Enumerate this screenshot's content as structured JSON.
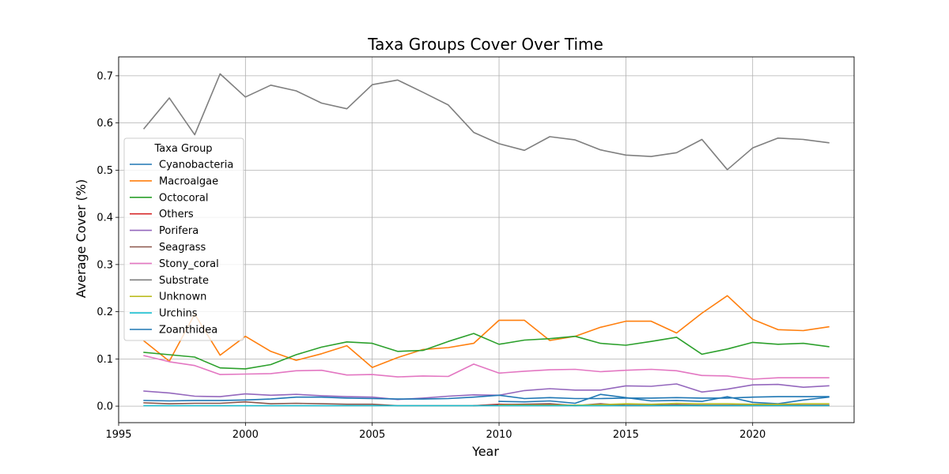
{
  "chart_data": {
    "type": "line",
    "title": "Taxa Groups Cover Over Time",
    "xlabel": "Year",
    "ylabel": "Average Cover (%)",
    "xlim": [
      1995,
      2024
    ],
    "ylim": [
      -0.035,
      0.74
    ],
    "xticks": [
      1995,
      2000,
      2005,
      2010,
      2015,
      2020
    ],
    "yticks": [
      0.0,
      0.1,
      0.2,
      0.3,
      0.4,
      0.5,
      0.6,
      0.7
    ],
    "ytick_labels": [
      "0.0",
      "0.1",
      "0.2",
      "0.3",
      "0.4",
      "0.5",
      "0.6",
      "0.7"
    ],
    "grid": true,
    "legend": {
      "title": "Taxa Group",
      "placement": "center-left"
    },
    "series": [
      {
        "name": "Cyanobacteria",
        "color": "#1f77b4",
        "x": [
          2010,
          2011,
          2012,
          2013,
          2014,
          2015,
          2016,
          2017,
          2018,
          2019,
          2020,
          2021,
          2022,
          2023
        ],
        "values": [
          0.01,
          0.009,
          0.011,
          0.006,
          0.025,
          0.018,
          0.011,
          0.012,
          0.01,
          0.02,
          0.008,
          0.005,
          0.013,
          0.019
        ]
      },
      {
        "name": "Macroalgae",
        "color": "#ff7f0e",
        "x": [
          1996,
          1997,
          1998,
          1999,
          2000,
          2001,
          2002,
          2003,
          2004,
          2005,
          2006,
          2007,
          2008,
          2009,
          2010,
          2011,
          2012,
          2013,
          2014,
          2015,
          2016,
          2017,
          2018,
          2019,
          2020,
          2021,
          2022,
          2023
        ],
        "values": [
          0.138,
          0.095,
          0.195,
          0.108,
          0.148,
          0.116,
          0.097,
          0.111,
          0.128,
          0.082,
          0.103,
          0.12,
          0.124,
          0.133,
          0.182,
          0.182,
          0.139,
          0.148,
          0.167,
          0.18,
          0.18,
          0.155,
          0.197,
          0.234,
          0.184,
          0.162,
          0.16,
          0.168
        ]
      },
      {
        "name": "Octocoral",
        "color": "#2ca02c",
        "x": [
          1996,
          1997,
          1998,
          1999,
          2000,
          2001,
          2002,
          2003,
          2004,
          2005,
          2006,
          2007,
          2008,
          2009,
          2010,
          2011,
          2012,
          2013,
          2014,
          2015,
          2016,
          2017,
          2018,
          2019,
          2020,
          2021,
          2022,
          2023
        ],
        "values": [
          0.114,
          0.109,
          0.104,
          0.081,
          0.079,
          0.088,
          0.109,
          0.125,
          0.136,
          0.133,
          0.116,
          0.118,
          0.137,
          0.154,
          0.131,
          0.14,
          0.143,
          0.148,
          0.133,
          0.129,
          0.137,
          0.146,
          0.11,
          0.121,
          0.135,
          0.131,
          0.133,
          0.126
        ]
      },
      {
        "name": "Others",
        "color": "#d62728",
        "x": [
          2009,
          2010,
          2011,
          2012,
          2013,
          2014,
          2015,
          2016,
          2017,
          2018,
          2019,
          2020,
          2021,
          2022,
          2023
        ],
        "values": [
          0.001,
          0.004,
          0.003,
          0.003,
          0.002,
          0.002,
          0.001,
          0.001,
          0.002,
          0.001,
          0.001,
          0.001,
          0.001,
          0.001,
          0.001
        ]
      },
      {
        "name": "Porifera",
        "color": "#9467bd",
        "x": [
          1996,
          1997,
          1998,
          1999,
          2000,
          2001,
          2002,
          2003,
          2004,
          2005,
          2006,
          2007,
          2008,
          2009,
          2010,
          2011,
          2012,
          2013,
          2014,
          2015,
          2016,
          2017,
          2018,
          2019,
          2020,
          2021,
          2022,
          2023
        ],
        "values": [
          0.032,
          0.028,
          0.021,
          0.02,
          0.026,
          0.023,
          0.025,
          0.022,
          0.02,
          0.019,
          0.014,
          0.017,
          0.021,
          0.024,
          0.023,
          0.033,
          0.037,
          0.034,
          0.034,
          0.043,
          0.042,
          0.047,
          0.03,
          0.036,
          0.045,
          0.046,
          0.04,
          0.043
        ]
      },
      {
        "name": "Seagrass",
        "color": "#8c564b",
        "x": [
          1996,
          1997,
          1998,
          1999,
          2000,
          2001,
          2002,
          2003,
          2004,
          2005,
          2006,
          2007,
          2008,
          2009,
          2010,
          2011,
          2012,
          2013,
          2014,
          2015,
          2016,
          2017,
          2018,
          2019,
          2020,
          2021,
          2022,
          2023
        ],
        "values": [
          0.007,
          0.005,
          0.006,
          0.006,
          0.009,
          0.005,
          0.006,
          0.005,
          0.004,
          0.004,
          0.001,
          0.001,
          0.001,
          0.001,
          0.003,
          0.004,
          0.005,
          0.001,
          0.005,
          0.002,
          0.002,
          0.003,
          0.002,
          0.002,
          0.002,
          0.002,
          0.002,
          0.002
        ]
      },
      {
        "name": "Stony_coral",
        "color": "#e377c2",
        "x": [
          1996,
          1997,
          1998,
          1999,
          2000,
          2001,
          2002,
          2003,
          2004,
          2005,
          2006,
          2007,
          2008,
          2009,
          2010,
          2011,
          2012,
          2013,
          2014,
          2015,
          2016,
          2017,
          2018,
          2019,
          2020,
          2021,
          2022,
          2023
        ],
        "values": [
          0.107,
          0.094,
          0.086,
          0.067,
          0.068,
          0.069,
          0.075,
          0.076,
          0.066,
          0.067,
          0.062,
          0.064,
          0.063,
          0.089,
          0.07,
          0.074,
          0.077,
          0.078,
          0.073,
          0.076,
          0.078,
          0.075,
          0.065,
          0.064,
          0.057,
          0.06,
          0.06,
          0.06
        ]
      },
      {
        "name": "Substrate",
        "color": "#7f7f7f",
        "x": [
          1996,
          1997,
          1998,
          1999,
          2000,
          2001,
          2002,
          2003,
          2004,
          2005,
          2006,
          2007,
          2008,
          2009,
          2010,
          2011,
          2012,
          2013,
          2014,
          2015,
          2016,
          2017,
          2018,
          2019,
          2020,
          2021,
          2022,
          2023
        ],
        "values": [
          0.588,
          0.653,
          0.575,
          0.704,
          0.655,
          0.68,
          0.668,
          0.642,
          0.63,
          0.681,
          0.691,
          0.665,
          0.638,
          0.58,
          0.556,
          0.542,
          0.571,
          0.564,
          0.543,
          0.532,
          0.529,
          0.537,
          0.565,
          0.501,
          0.547,
          0.568,
          0.565,
          0.558
        ]
      },
      {
        "name": "Unknown",
        "color": "#bcbd22",
        "x": [
          2010,
          2011,
          2012,
          2013,
          2014,
          2015,
          2016,
          2017,
          2018,
          2019,
          2020,
          2021,
          2022,
          2023
        ],
        "values": [
          0.002,
          0.002,
          0.002,
          0.002,
          0.003,
          0.005,
          0.004,
          0.006,
          0.005,
          0.005,
          0.004,
          0.004,
          0.005,
          0.005
        ]
      },
      {
        "name": "Urchins",
        "color": "#17becf",
        "x": [
          1996,
          1997,
          1998,
          1999,
          2000,
          2001,
          2002,
          2003,
          2004,
          2005,
          2006,
          2007,
          2008,
          2009,
          2010,
          2011,
          2012,
          2013,
          2014,
          2015,
          2016,
          2017,
          2018,
          2019,
          2020,
          2021,
          2022,
          2023
        ],
        "values": [
          0.001,
          0.001,
          0.001,
          0.001,
          0.001,
          0.001,
          0.001,
          0.001,
          0.001,
          0.001,
          0.001,
          0.001,
          0.001,
          0.001,
          0.001,
          0.001,
          0.001,
          0.001,
          0.001,
          0.001,
          0.001,
          0.001,
          0.001,
          0.001,
          0.001,
          0.001,
          0.001,
          0.001
        ]
      },
      {
        "name": "Zoanthidea",
        "color": "#1f77b4",
        "x": [
          1996,
          1997,
          1998,
          1999,
          2000,
          2001,
          2002,
          2003,
          2004,
          2005,
          2006,
          2007,
          2008,
          2009,
          2010,
          2011,
          2012,
          2013,
          2014,
          2015,
          2016,
          2017,
          2018,
          2019,
          2020,
          2021,
          2022,
          2023
        ],
        "values": [
          0.012,
          0.011,
          0.012,
          0.012,
          0.013,
          0.015,
          0.019,
          0.019,
          0.017,
          0.016,
          0.015,
          0.015,
          0.016,
          0.019,
          0.023,
          0.016,
          0.018,
          0.016,
          0.016,
          0.017,
          0.017,
          0.018,
          0.017,
          0.017,
          0.019,
          0.02,
          0.02,
          0.02
        ]
      }
    ]
  }
}
